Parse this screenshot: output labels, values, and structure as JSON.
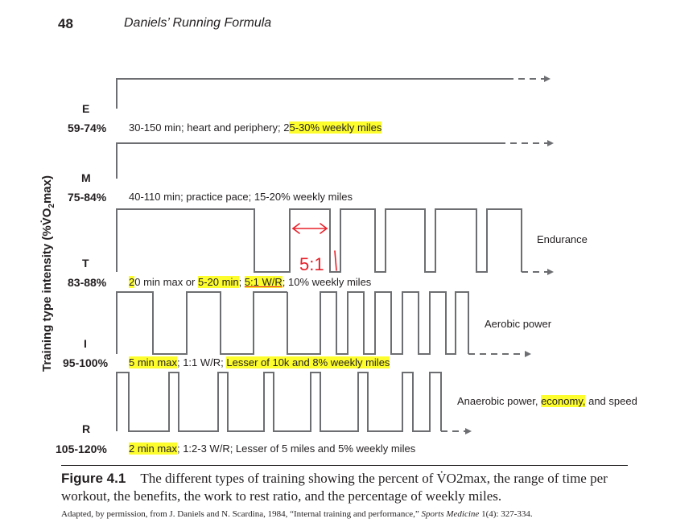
{
  "header": {
    "page_number": "48",
    "running_head": "Daniels’ Running Formula"
  },
  "axis_title": "Training type intensity (%VO2max)",
  "tiers": [
    {
      "letter": "E",
      "pct": "59-74%",
      "desc_parts": [
        {
          "t": "30-150 min; heart and periphery; 2",
          "h": false
        },
        {
          "t": "5-30% weekly miles",
          "h": true
        }
      ]
    },
    {
      "letter": "M",
      "pct": "75-84%",
      "desc_parts": [
        {
          "t": "40-110 min; practice pace; 15-20% weekly miles",
          "h": false
        }
      ]
    },
    {
      "letter": "T",
      "pct": "83-88%",
      "desc_parts": [
        {
          "t": "2",
          "h": true
        },
        {
          "t": "0 min max or ",
          "h": false
        },
        {
          "t": "5-20 min",
          "h": true
        },
        {
          "t": "; ",
          "h": false
        },
        {
          "t": "5:1 W/R",
          "h": true
        },
        {
          "t": "; 10% weekly miles",
          "h": false
        }
      ]
    },
    {
      "letter": "I",
      "pct": "95-100%",
      "desc_parts": [
        {
          "t": "5 min max",
          "h": true
        },
        {
          "t": "; 1:1 W/R; ",
          "h": false
        },
        {
          "t": "Lesser of 10k and 8% weekly miles",
          "h": true
        }
      ]
    },
    {
      "letter": "R",
      "pct": "105-120%",
      "desc_parts": [
        {
          "t": "2 min max",
          "h": true
        },
        {
          "t": "; 1:2-3 W/R;  Lesser of 5 miles and 5% weekly miles",
          "h": false
        }
      ]
    }
  ],
  "benefits": {
    "t": "Endurance",
    "i": "Aerobic power",
    "r_parts": [
      {
        "t": "Anaerobic power, ",
        "h": false
      },
      {
        "t": "economy,",
        "h": true
      },
      {
        "t": " and speed",
        "h": false
      }
    ]
  },
  "handwriting": {
    "ratio_note": "5:1"
  },
  "caption": {
    "label": "Figure 4.1",
    "text": "The different types of training showing the percent of V̇O2max, the range of time per workout, the benefits, the work to rest ratio, and the percentage of weekly miles."
  },
  "credit": {
    "prefix": "Adapted, by permission, from J. Daniels and N. Scardina, 1984, “Internal training and performance,” ",
    "journal": "Sports Medicine",
    "suffix": " 1(4): 327-334."
  },
  "colors": {
    "ink": "#231f20",
    "highlight": "#fdfd2e",
    "pen": "#e8202a",
    "waveform": "#6d6e71"
  }
}
